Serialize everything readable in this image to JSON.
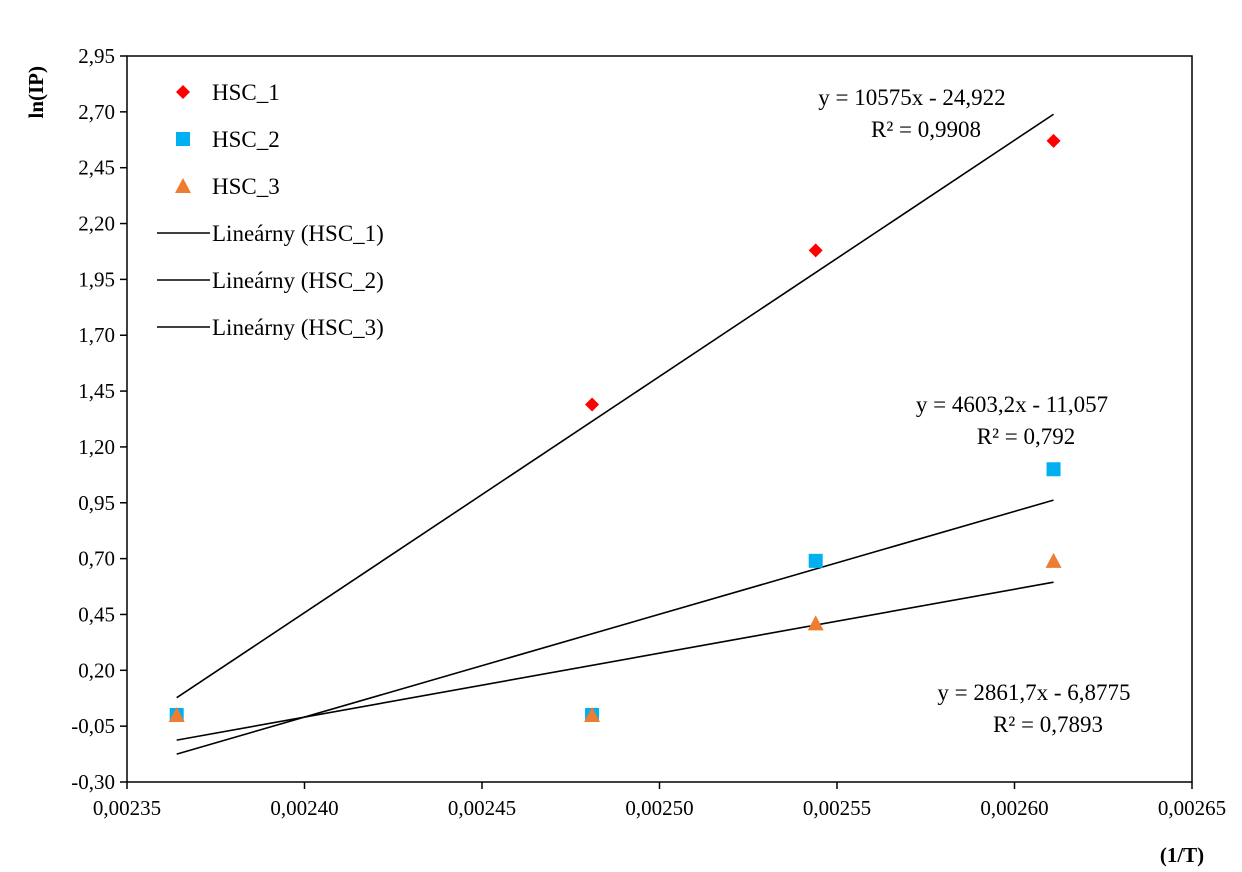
{
  "chart_data": {
    "type": "scatter",
    "title": "",
    "xlabel": "(1/T)",
    "ylabel": "ln(IP)",
    "xlim": [
      0.00235,
      0.00265
    ],
    "ylim": [
      -0.3,
      2.95
    ],
    "xticks": [
      0.00235,
      0.0024,
      0.00245,
      0.0025,
      0.00255,
      0.0026,
      0.00265
    ],
    "xtick_labels": [
      "0,00235",
      "0,00240",
      "0,00245",
      "0,00250",
      "0,00255",
      "0,00260",
      "0,00265"
    ],
    "yticks": [
      -0.3,
      -0.05,
      0.2,
      0.45,
      0.7,
      0.95,
      1.2,
      1.45,
      1.7,
      1.95,
      2.2,
      2.45,
      2.7,
      2.95
    ],
    "ytick_labels": [
      "-0,30",
      "-0,05",
      "0,20",
      "0,45",
      "0,70",
      "0,95",
      "1,20",
      "1,45",
      "1,70",
      "1,95",
      "2,20",
      "2,45",
      "2,70",
      "2,95"
    ],
    "grid": false,
    "legend_position": "top-left",
    "series": [
      {
        "name": "HSC_1",
        "marker": "diamond",
        "color": "#ff0000",
        "x": [
          0.002364,
          0.002481,
          0.002544,
          0.002611
        ],
        "y": [
          0.0,
          1.39,
          2.08,
          2.57
        ]
      },
      {
        "name": "HSC_2",
        "marker": "square",
        "color": "#00b0f0",
        "x": [
          0.002364,
          0.002481,
          0.002544,
          0.002611
        ],
        "y": [
          0.0,
          0.0,
          0.69,
          1.1
        ]
      },
      {
        "name": "HSC_3",
        "marker": "triangle",
        "color": "#ed7d31",
        "x": [
          0.002364,
          0.002481,
          0.002544,
          0.002611
        ],
        "y": [
          0.0,
          0.0,
          0.41,
          0.69
        ]
      }
    ],
    "trendlines": [
      {
        "name": "Lineárny (HSC_1)",
        "series": "HSC_1",
        "slope": 10575,
        "intercept": -24.922,
        "equation": "y = 10575x - 24,922",
        "r2": "R² = 0,9908",
        "color": "#000000"
      },
      {
        "name": "Lineárny (HSC_2)",
        "series": "HSC_2",
        "slope": 4603.2,
        "intercept": -11.057,
        "equation": "y = 4603,2x - 11,057",
        "r2": "R² = 0,792",
        "color": "#000000"
      },
      {
        "name": "Lineárny (HSC_3)",
        "series": "HSC_3",
        "slope": 2861.7,
        "intercept": -6.8775,
        "equation": "y = 2861,7x - 6,8775",
        "r2": "R² = 0,7893",
        "color": "#000000"
      }
    ]
  }
}
